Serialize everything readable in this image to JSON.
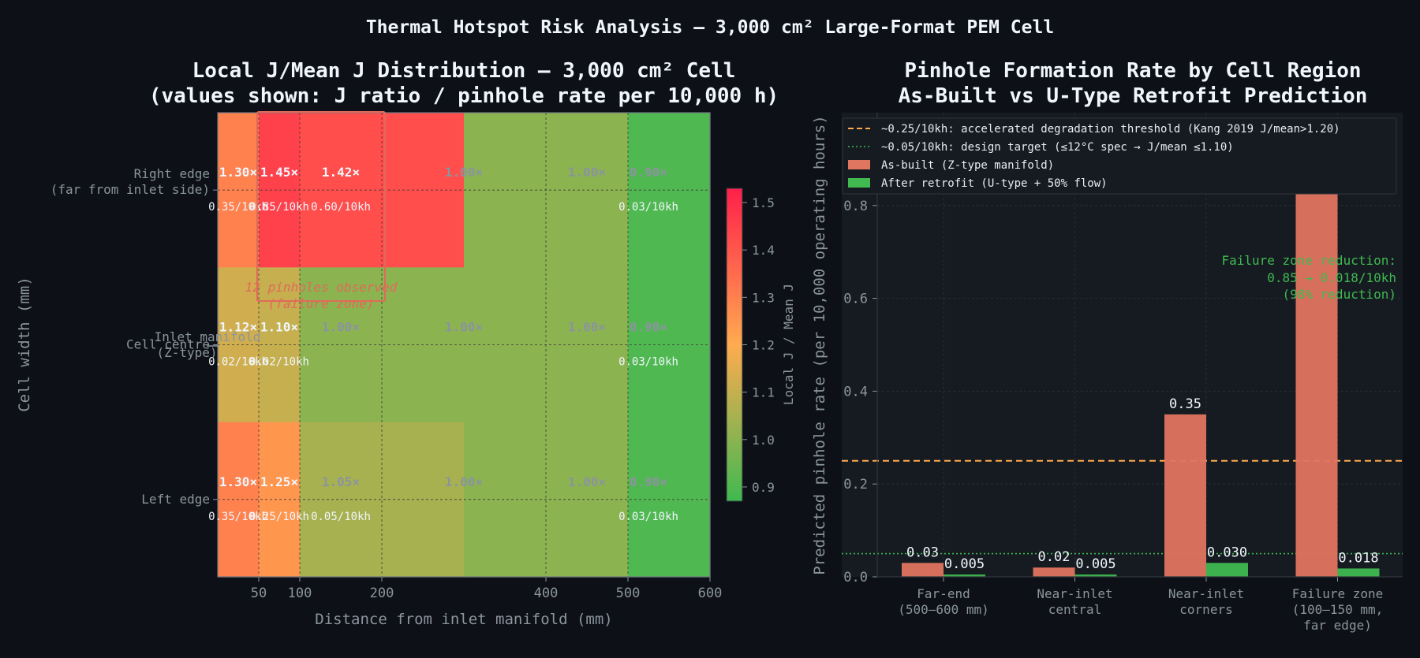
{
  "suptitle": "Thermal Hotspot Risk Analysis — 3,000 cm² Large-Format PEM Cell",
  "heatmap": {
    "title_line1": "Local J/Mean J Distribution — 3,000 cm² Cell",
    "title_line2": "(values shown: J ratio / pinhole rate per 10,000 h)",
    "xlabel": "Distance from inlet manifold (mm)",
    "ylabel": "Cell width (mm)",
    "colorbar_label": "Local J / Mean J",
    "colorbar_ticks": [
      "0.9",
      "1.0",
      "1.1",
      "1.2",
      "1.3",
      "1.4",
      "1.5"
    ],
    "colorscale": {
      "min": 0.87,
      "max": 1.53,
      "low": "#3fb950",
      "mid": "#ffab4f",
      "high": "#ff1f4b"
    }
  },
  "bars": {
    "title_line1": "Pinhole Formation Rate by Cell Region",
    "title_line2": "As-Built vs U-Type Retrofit Prediction",
    "ylabel": "Predicted pinhole rate (per 10,000 operating hours)",
    "legend": [
      "~0.25/10kh: accelerated degradation threshold (Kang 2019 J/mean>1.20)",
      "~0.05/10kh: design target (≤12°C spec → J/mean ≤1.10)",
      "As-built (Z-type manifold)",
      "After retrofit (U-type + 50% flow)"
    ],
    "annotation": [
      "Failure zone reduction:",
      "0.85 → 0.018/10kh",
      "(98% reduction)"
    ],
    "colors": {
      "asbuilt": "#e07560",
      "retrofit": "#3fb950",
      "threshold": "#ffab4f",
      "target": "#3fb950"
    }
  },
  "chart_data": [
    {
      "type": "heatmap",
      "title": "Local J/Mean J Distribution — 3,000 cm² Cell (values shown: J ratio / pinhole rate per 10,000 h)",
      "xlabel": "Distance from inlet manifold (mm)",
      "ylabel": "Cell width (mm)",
      "x_edges": [
        0,
        50,
        100,
        200,
        300,
        400,
        500,
        600
      ],
      "x_ticks": [
        "50",
        "100",
        "200",
        "400",
        "500",
        "600"
      ],
      "x_tick_values": [
        50,
        100,
        200,
        400,
        500,
        600
      ],
      "rows": [
        "Right edge\n(far from inlet side)",
        "Cell centre",
        "Left edge"
      ],
      "values": [
        [
          1.3,
          1.45,
          1.42,
          1.42,
          1.0,
          1.0,
          0.9
        ],
        [
          1.12,
          1.1,
          1.0,
          1.0,
          1.0,
          1.0,
          0.9
        ],
        [
          1.3,
          1.25,
          1.05,
          1.05,
          1.0,
          1.0,
          0.9
        ]
      ],
      "cell_labels": [
        {
          "row": 0,
          "x": 25,
          "ratio": "1.30×",
          "rate": "0.35/10kh"
        },
        {
          "row": 0,
          "x": 75,
          "ratio": "1.45×",
          "rate": "0.85/10kh"
        },
        {
          "row": 0,
          "x": 150,
          "ratio": "1.42×",
          "rate": "0.60/10kh"
        },
        {
          "row": 0,
          "x": 300,
          "ratio": "1.00×",
          "rate": ""
        },
        {
          "row": 0,
          "x": 450,
          "ratio": "1.00×",
          "rate": ""
        },
        {
          "row": 0,
          "x": 525,
          "ratio": "0.90×",
          "rate": "0.03/10kh"
        },
        {
          "row": 1,
          "x": 25,
          "ratio": "1.12×",
          "rate": "0.02/10kh"
        },
        {
          "row": 1,
          "x": 75,
          "ratio": "1.10×",
          "rate": "0.02/10kh"
        },
        {
          "row": 1,
          "x": 150,
          "ratio": "1.00×",
          "rate": ""
        },
        {
          "row": 1,
          "x": 300,
          "ratio": "1.00×",
          "rate": ""
        },
        {
          "row": 1,
          "x": 450,
          "ratio": "1.00×",
          "rate": ""
        },
        {
          "row": 1,
          "x": 525,
          "ratio": "0.90×",
          "rate": "0.03/10kh"
        },
        {
          "row": 2,
          "x": 25,
          "ratio": "1.30×",
          "rate": "0.35/10kh"
        },
        {
          "row": 2,
          "x": 75,
          "ratio": "1.25×",
          "rate": "0.25/10kh"
        },
        {
          "row": 2,
          "x": 150,
          "ratio": "1.05×",
          "rate": "0.05/10kh"
        },
        {
          "row": 2,
          "x": 300,
          "ratio": "1.00×",
          "rate": ""
        },
        {
          "row": 2,
          "x": 450,
          "ratio": "1.00×",
          "rate": ""
        },
        {
          "row": 2,
          "x": 525,
          "ratio": "0.90×",
          "rate": "0.03/10kh"
        }
      ],
      "annotations": [
        "12 pinholes observed",
        "(failure zone)",
        "Inlet manifold",
        "(Z-type)"
      ],
      "colorbar": {
        "label": "Local J / Mean J",
        "range": [
          0.87,
          1.53
        ]
      }
    },
    {
      "type": "bar",
      "title": "Pinhole Formation Rate by Cell Region As-Built vs U-Type Retrofit Prediction",
      "ylabel": "Predicted pinhole rate (per 10,000 operating hours)",
      "ylim": [
        0,
        1.0
      ],
      "y_ticks": [
        0.0,
        0.2,
        0.4,
        0.6,
        0.8
      ],
      "categories": [
        "Far-end\n(500–600 mm)",
        "Near-inlet\ncentral",
        "Near-inlet\ncorners",
        "Failure zone\n(100–150 mm,\nfar edge)"
      ],
      "series": [
        {
          "name": "As-built (Z-type manifold)",
          "values": [
            0.03,
            0.02,
            0.35,
            0.85
          ],
          "labels": [
            "0.03",
            "0.02",
            "0.35",
            "0.85"
          ]
        },
        {
          "name": "After retrofit (U-type + 50% flow)",
          "values": [
            0.005,
            0.005,
            0.03,
            0.018
          ],
          "labels": [
            "0.005",
            "0.005",
            "0.030",
            "0.018"
          ]
        }
      ],
      "reference_lines": [
        {
          "value": 0.25,
          "label": "~0.25/10kh: accelerated degradation threshold (Kang 2019 J/mean>1.20)"
        },
        {
          "value": 0.05,
          "label": "~0.05/10kh: design target (≤12°C spec → J/mean ≤1.10)"
        }
      ],
      "legend_position": "top-right"
    }
  ]
}
